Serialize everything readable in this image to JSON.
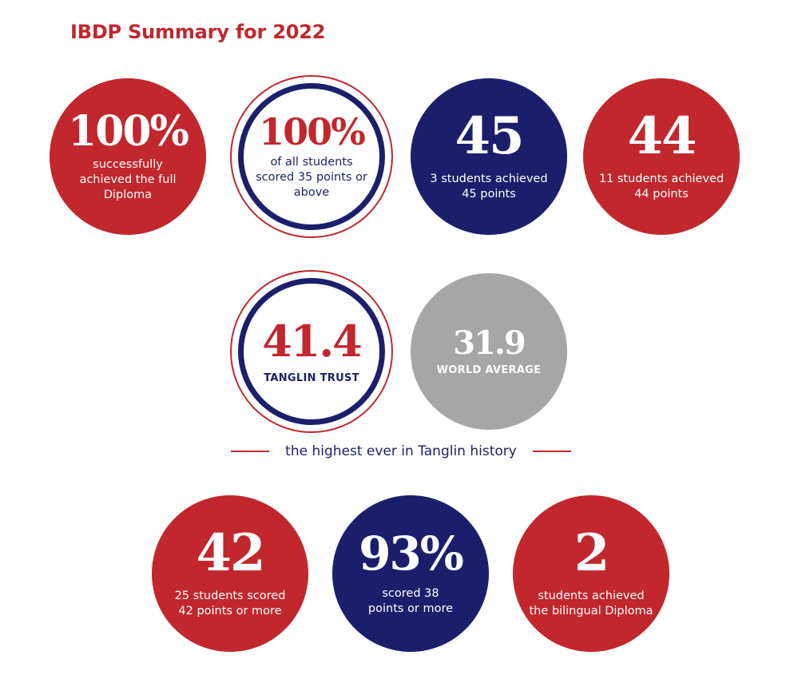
{
  "title": "IBDP Summary for 2022",
  "row1": [
    {
      "value": "100%",
      "text": "successfully achieved the full Diploma"
    },
    {
      "value": "100%",
      "text": "of all students scored 35 points or above"
    },
    {
      "value": "45",
      "text": "3 students achieved 45 points"
    },
    {
      "value": "44",
      "text": "11 students achieved 44 points"
    }
  ],
  "comparison": {
    "tanglin": {
      "value": "41.4",
      "label": "TANGLIN TRUST"
    },
    "world": {
      "value": "31.9",
      "label": "WORLD AVERAGE"
    }
  },
  "tagline": "the highest ever in Tanglin history",
  "row3": [
    {
      "value": "42",
      "text": "25 students scored 42 points or more"
    },
    {
      "value": "93%",
      "text": "scored 38 points or more"
    },
    {
      "value": "2",
      "text": "students achieved the bilingual Diploma"
    }
  ],
  "colors": {
    "red": "#c1272d",
    "navy": "#1b1f6b",
    "grey": "#a6a6a6"
  }
}
